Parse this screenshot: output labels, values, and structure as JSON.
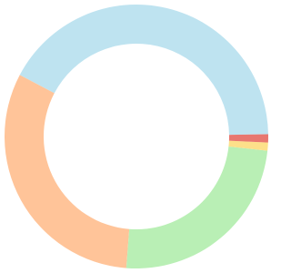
{
  "chart_data": {
    "type": "donut",
    "values": [
      42,
      31.5,
      24.5,
      1,
      1
    ],
    "colors": [
      "#bee3f0",
      "#ffc499",
      "#b9efb5",
      "#fde08a",
      "#e8776f"
    ]
  }
}
